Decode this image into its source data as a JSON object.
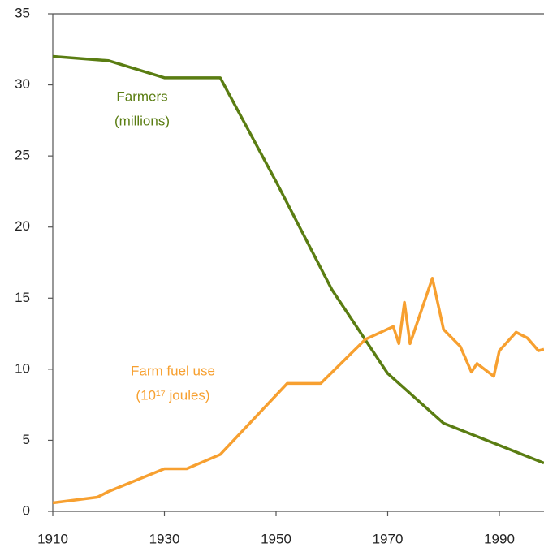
{
  "chart_data": {
    "type": "line",
    "xlim": [
      1910,
      1998
    ],
    "xticks": [
      1910,
      1930,
      1950,
      1970,
      1990
    ],
    "ylim": [
      0,
      35
    ],
    "yticks": [
      0,
      5,
      10,
      15,
      20,
      25,
      30,
      35
    ],
    "series": [
      {
        "name": "Farmers",
        "note": "(millions)",
        "color": "#5a7d12",
        "x": [
          1910,
          1920,
          1930,
          1940,
          1950,
          1960,
          1970,
          1980,
          1998
        ],
        "values": [
          32,
          31.7,
          30.5,
          30.5,
          23.2,
          15.6,
          9.7,
          6.2,
          3.4
        ]
      },
      {
        "name": "Farm fuel use",
        "note": "(10¹⁷ joules)",
        "color": "#f7a030",
        "x": [
          1910,
          1918,
          1920,
          1930,
          1934,
          1940,
          1946,
          1952,
          1958,
          1966,
          1971,
          1972,
          1973,
          1974,
          1978,
          1980,
          1983,
          1985,
          1986,
          1989,
          1990,
          1993,
          1995,
          1997,
          1998
        ],
        "values": [
          0.6,
          1.0,
          1.4,
          3.0,
          3.0,
          4.0,
          6.5,
          9.0,
          9.0,
          12.1,
          13.0,
          11.8,
          14.7,
          11.8,
          16.4,
          12.8,
          11.6,
          9.8,
          10.4,
          9.5,
          11.3,
          12.6,
          12.2,
          11.3,
          11.4
        ]
      }
    ]
  }
}
